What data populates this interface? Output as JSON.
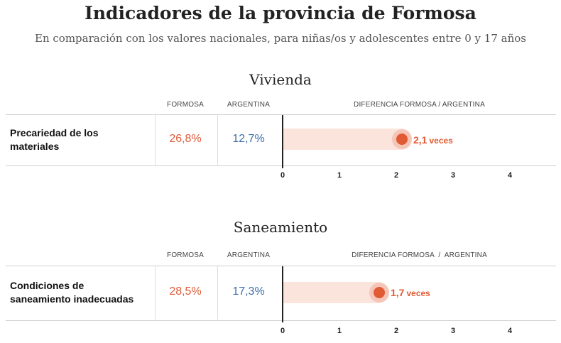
{
  "title": "Indicadores de la provincia de Formosa",
  "subtitle": "En comparación con los valores nacionales, para niñas/os y adolescentes entre 0 y 17 años",
  "sections": [
    {
      "title": "Vivienda",
      "col_formosa": "FORMOSA",
      "col_argentina": "ARGENTINA",
      "col_diff": "DIFERENCIA FORMOSA / ARGENTINA",
      "row": {
        "label_line1": "Precariedad de los",
        "label_line2": "materiales",
        "formosa": "26,8%",
        "argentina": "12,7%",
        "ratio_label": "2,1",
        "ratio_unit": "veces"
      },
      "ticks": [
        "0",
        "1",
        "2",
        "3",
        "4"
      ]
    },
    {
      "title": "Saneamiento",
      "col_formosa": "FORMOSA",
      "col_argentina": "ARGENTINA",
      "col_diff": "DIFERENCIA FORMOSA  /  ARGENTINA",
      "row": {
        "label_line1": "Condiciones de",
        "label_line2": "saneamiento inadecuadas",
        "formosa": "28,5%",
        "argentina": "17,3%",
        "ratio_label": "1,7",
        "ratio_unit": "veces"
      },
      "ticks": [
        "0",
        "1",
        "2",
        "3",
        "4"
      ]
    }
  ],
  "chart_data": [
    {
      "type": "bar",
      "title": "Vivienda",
      "categories": [
        "Precariedad de los materiales"
      ],
      "values": [
        2.1
      ],
      "xlim": [
        0,
        4
      ],
      "x_ticks": [
        0,
        1,
        2,
        3,
        4
      ],
      "xlabel": "DIFERENCIA FORMOSA / ARGENTINA",
      "grid": false
    },
    {
      "type": "bar",
      "title": "Saneamiento",
      "categories": [
        "Condiciones de saneamiento inadecuadas"
      ],
      "values": [
        1.7
      ],
      "xlim": [
        0,
        4
      ],
      "x_ticks": [
        0,
        1,
        2,
        3,
        4
      ],
      "xlabel": "DIFERENCIA FORMOSA  /  ARGENTINA",
      "grid": false
    }
  ],
  "colors": {
    "formosa": "#e05c3a",
    "argentina": "#3b6ea8",
    "bar_bg": "#fbe4dc",
    "dot": "#e05a33"
  }
}
